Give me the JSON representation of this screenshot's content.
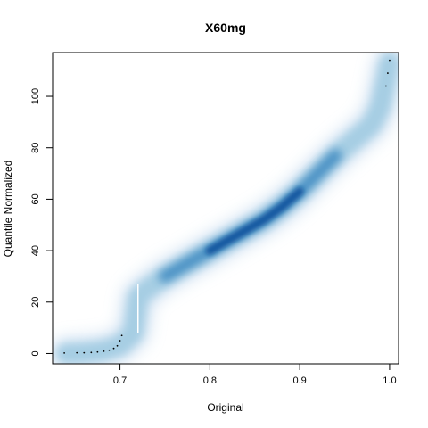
{
  "chart_data": {
    "type": "scatter",
    "title": "X60mg",
    "xlabel": "Original",
    "ylabel": "Quantile Normalized",
    "xlim": [
      0.625,
      1.01
    ],
    "ylim": [
      -4,
      117
    ],
    "x_ticks": [
      0.7,
      0.8,
      0.9,
      1.0
    ],
    "x_tick_labels": [
      "0.7",
      "0.8",
      "0.9",
      "1.0"
    ],
    "y_ticks": [
      0,
      20,
      40,
      60,
      80,
      100
    ],
    "y_tick_labels": [
      "0",
      "20",
      "40",
      "60",
      "80",
      "100"
    ],
    "rendering": "smoothed density scatter (blue)",
    "density_color": "#08519c",
    "trend": {
      "x": [
        0.64,
        0.66,
        0.68,
        0.7,
        0.715,
        0.72,
        0.73,
        0.75,
        0.78,
        0.8,
        0.82,
        0.84,
        0.86,
        0.88,
        0.9,
        0.92,
        0.94,
        0.96,
        0.98,
        0.99,
        1.0
      ],
      "y": [
        0,
        0.3,
        1,
        3,
        8,
        22,
        25,
        30,
        36,
        40,
        44,
        48,
        52,
        57,
        63,
        70,
        77,
        83,
        89,
        96,
        113
      ]
    },
    "outlier_points": {
      "x": [
        0.638,
        0.652,
        0.66,
        0.668,
        0.675,
        0.682,
        0.688,
        0.693,
        0.697,
        0.7,
        0.702,
        0.996,
        0.998,
        1.0
      ],
      "y": [
        0.2,
        0.3,
        0.3,
        0.4,
        0.6,
        0.9,
        1.3,
        2.0,
        3.0,
        5.0,
        7.0,
        104,
        109,
        114
      ]
    }
  }
}
